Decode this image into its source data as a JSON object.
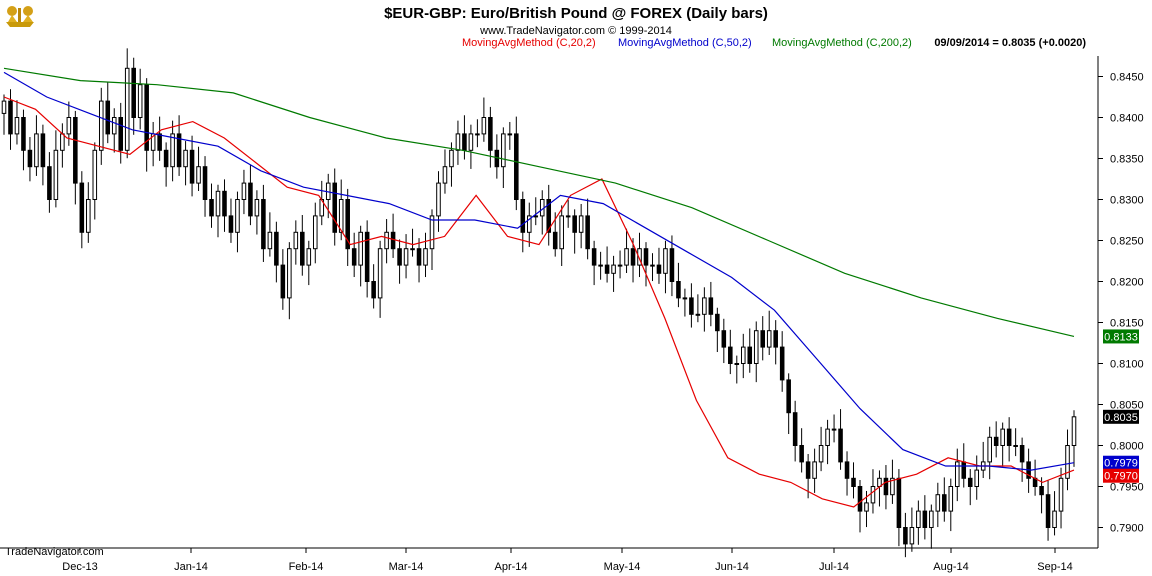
{
  "header": {
    "title": "$EUR-GBP:  Euro/British Pound @ FOREX  (Daily bars)",
    "website": "www.TradeNavigator.com © 1999-2014",
    "legend": [
      {
        "text": "MovingAvgMethod (C,20,2)",
        "color": "#e60000"
      },
      {
        "text": "MovingAvgMethod (C,50,2)",
        "color": "#0000cc"
      },
      {
        "text": "MovingAvgMethod (C,200,2)",
        "color": "#007a00"
      }
    ],
    "last_quote": "09/09/2014 = 0.8035 (+0.0020)"
  },
  "footer": {
    "brand": "TradeNavigator.com"
  },
  "logo_icon": "golden-bull-bear-icon",
  "colors": {
    "price": "#000000",
    "ma20": "#e60000",
    "ma50": "#0000cc",
    "ma200": "#007a00"
  },
  "chart_data": {
    "type": "candlestick",
    "title": "$EUR-GBP:  Euro/British Pound @ FOREX  (Daily bars)",
    "x_labels": [
      "Dec-13",
      "Jan-14",
      "Feb-14",
      "Mar-14",
      "Apr-14",
      "May-14",
      "Jun-14",
      "Jul-14",
      "Aug-14",
      "Sep-14"
    ],
    "y_ticks": [
      "0.8450",
      "0.8400",
      "0.8350",
      "0.8300",
      "0.8250",
      "0.8200",
      "0.8150",
      "0.8100",
      "0.8050",
      "0.8000",
      "0.7950",
      "0.7900"
    ],
    "y_range": [
      0.7875,
      0.8475
    ],
    "y_axis_side": "right",
    "grid": false,
    "price_closes": [
      0.842,
      0.838,
      0.84,
      0.836,
      0.834,
      0.838,
      0.834,
      0.83,
      0.836,
      0.838,
      0.84,
      0.832,
      0.826,
      0.83,
      0.836,
      0.842,
      0.838,
      0.84,
      0.836,
      0.846,
      0.84,
      0.844,
      0.836,
      0.838,
      0.836,
      0.834,
      0.838,
      0.834,
      0.836,
      0.832,
      0.834,
      0.83,
      0.828,
      0.831,
      0.828,
      0.826,
      0.83,
      0.832,
      0.828,
      0.83,
      0.824,
      0.826,
      0.822,
      0.818,
      0.824,
      0.826,
      0.822,
      0.824,
      0.828,
      0.83,
      0.832,
      0.826,
      0.83,
      0.824,
      0.822,
      0.826,
      0.82,
      0.818,
      0.824,
      0.826,
      0.824,
      0.822,
      0.824,
      0.824,
      0.822,
      0.824,
      0.828,
      0.832,
      0.834,
      0.836,
      0.838,
      0.836,
      0.838,
      0.838,
      0.84,
      0.836,
      0.834,
      0.838,
      0.838,
      0.83,
      0.826,
      0.828,
      0.828,
      0.83,
      0.826,
      0.824,
      0.828,
      0.828,
      0.826,
      0.828,
      0.824,
      0.822,
      0.822,
      0.821,
      0.822,
      0.822,
      0.824,
      0.822,
      0.824,
      0.822,
      0.822,
      0.821,
      0.824,
      0.82,
      0.818,
      0.818,
      0.816,
      0.816,
      0.818,
      0.816,
      0.814,
      0.812,
      0.81,
      0.81,
      0.812,
      0.81,
      0.814,
      0.812,
      0.814,
      0.812,
      0.808,
      0.804,
      0.8,
      0.798,
      0.796,
      0.798,
      0.8,
      0.802,
      0.802,
      0.798,
      0.796,
      0.795,
      0.792,
      0.793,
      0.795,
      0.796,
      0.794,
      0.796,
      0.79,
      0.788,
      0.79,
      0.792,
      0.79,
      0.792,
      0.794,
      0.792,
      0.795,
      0.798,
      0.796,
      0.795,
      0.797,
      0.798,
      0.801,
      0.8,
      0.802,
      0.8,
      0.8,
      0.798,
      0.796,
      0.795,
      0.794,
      0.79,
      0.792,
      0.796,
      0.8,
      0.8035
    ],
    "last_price": "0.8035",
    "series": [
      {
        "name": "MovingAvgMethod (C,20,2)",
        "last_value": "0.7970",
        "values": [
          0.8425,
          0.841,
          0.8375,
          0.8365,
          0.8355,
          0.8385,
          0.8395,
          0.8375,
          0.8345,
          0.8315,
          0.8305,
          0.8245,
          0.8255,
          0.8245,
          0.8255,
          0.8305,
          0.8255,
          0.8245,
          0.8305,
          0.8325,
          0.8245,
          0.8155,
          0.8055,
          0.7985,
          0.7965,
          0.7955,
          0.7935,
          0.7925,
          0.7955,
          0.7965,
          0.7985,
          0.7975,
          0.7975,
          0.7955,
          0.797
        ]
      },
      {
        "name": "MovingAvgMethod (C,50,2)",
        "last_value": "0.7979",
        "values": [
          0.8455,
          0.8425,
          0.8405,
          0.8385,
          0.8375,
          0.8365,
          0.8335,
          0.8315,
          0.8305,
          0.8295,
          0.8275,
          0.8275,
          0.8265,
          0.8305,
          0.8295,
          0.8265,
          0.8235,
          0.8205,
          0.8165,
          0.8105,
          0.8045,
          0.7995,
          0.7975,
          0.7975,
          0.797,
          0.7979
        ]
      },
      {
        "name": "MovingAvgMethod (C,200,2)",
        "last_value": "0.8133",
        "values": [
          0.846,
          0.8445,
          0.844,
          0.843,
          0.84,
          0.8375,
          0.836,
          0.834,
          0.832,
          0.829,
          0.825,
          0.821,
          0.818,
          0.8155,
          0.8133
        ]
      }
    ]
  }
}
